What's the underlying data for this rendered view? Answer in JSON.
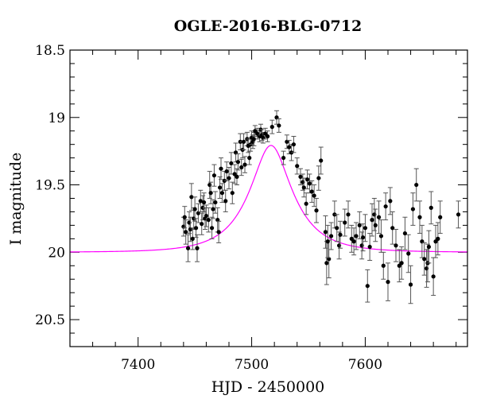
{
  "chart_data": {
    "type": "scatter",
    "title": "OGLE-2016-BLG-0712",
    "xlabel": "HJD - 2450000",
    "ylabel": "I magnitude",
    "xlim": [
      7340,
      7690
    ],
    "ylim": [
      20.7,
      18.5
    ],
    "y_inverted": true,
    "grid": false,
    "x_major_ticks": [
      7400,
      7500,
      7600
    ],
    "x_tick_labels": [
      "7400",
      "7500",
      "7600"
    ],
    "x_minor_step": 20,
    "y_major_ticks": [
      18.5,
      19,
      19.5,
      20,
      20.5
    ],
    "y_tick_labels": [
      "18.5",
      "19",
      "19.5",
      "20",
      "20.5"
    ],
    "y_minor_step": 0.1,
    "model_color": "#ff00ff",
    "point_color": "#000000",
    "model": {
      "type": "paczynski",
      "t0": 7517,
      "tE": 37,
      "u0": 0.42,
      "base_mag": 20.0,
      "blend_fraction": 0.7
    },
    "series": [
      {
        "points": [
          [
            7440,
            19.81,
            0.07
          ],
          [
            7441,
            19.74,
            0.08
          ],
          [
            7442,
            19.85,
            0.09
          ],
          [
            7444,
            19.97,
            0.1
          ],
          [
            7445,
            19.78,
            0.08
          ],
          [
            7446,
            19.83,
            0.09
          ],
          [
            7447,
            19.59,
            0.1
          ],
          [
            7448,
            19.9,
            0.08
          ],
          [
            7449,
            19.75,
            0.08
          ],
          [
            7450,
            19.68,
            0.09
          ],
          [
            7451,
            19.82,
            0.07
          ],
          [
            7452,
            19.97,
            0.1
          ],
          [
            7453,
            19.71,
            0.07
          ],
          [
            7455,
            19.62,
            0.08
          ],
          [
            7456,
            19.79,
            0.08
          ],
          [
            7457,
            19.67,
            0.09
          ],
          [
            7458,
            19.63,
            0.07
          ],
          [
            7459,
            19.75,
            0.08
          ],
          [
            7460,
            19.73,
            0.08
          ],
          [
            7462,
            19.76,
            0.09
          ],
          [
            7463,
            19.5,
            0.1
          ],
          [
            7464,
            19.56,
            0.08
          ],
          [
            7465,
            19.82,
            0.08
          ],
          [
            7466,
            19.68,
            0.07
          ],
          [
            7467,
            19.43,
            0.08
          ],
          [
            7468,
            19.63,
            0.08
          ],
          [
            7470,
            19.76,
            0.09
          ],
          [
            7471,
            19.85,
            0.08
          ],
          [
            7472,
            19.52,
            0.08
          ],
          [
            7473,
            19.38,
            0.08
          ],
          [
            7474,
            19.56,
            0.07
          ],
          [
            7476,
            19.47,
            0.07
          ],
          [
            7477,
            19.62,
            0.08
          ],
          [
            7478,
            19.4,
            0.07
          ],
          [
            7480,
            19.45,
            0.08
          ],
          [
            7482,
            19.34,
            0.08
          ],
          [
            7483,
            19.56,
            0.08
          ],
          [
            7485,
            19.42,
            0.07
          ],
          [
            7486,
            19.26,
            0.07
          ],
          [
            7487,
            19.44,
            0.06
          ],
          [
            7488,
            19.33,
            0.06
          ],
          [
            7490,
            19.18,
            0.06
          ],
          [
            7491,
            19.37,
            0.06
          ],
          [
            7492,
            19.24,
            0.06
          ],
          [
            7493,
            19.18,
            0.06
          ],
          [
            7494,
            19.35,
            0.06
          ],
          [
            7496,
            19.16,
            0.05
          ],
          [
            7497,
            19.21,
            0.05
          ],
          [
            7498,
            19.3,
            0.05
          ],
          [
            7499,
            19.2,
            0.05
          ],
          [
            7500,
            19.15,
            0.05
          ],
          [
            7501,
            19.18,
            0.05
          ],
          [
            7502,
            19.16,
            0.05
          ],
          [
            7503,
            19.1,
            0.04
          ],
          [
            7505,
            19.12,
            0.04
          ],
          [
            7507,
            19.14,
            0.04
          ],
          [
            7508,
            19.09,
            0.04
          ],
          [
            7509,
            19.13,
            0.04
          ],
          [
            7510,
            19.15,
            0.04
          ],
          [
            7512,
            19.12,
            0.04
          ],
          [
            7514,
            19.14,
            0.04
          ],
          [
            7518,
            19.07,
            0.05
          ],
          [
            7522,
            19.0,
            0.05
          ],
          [
            7524,
            19.06,
            0.05
          ],
          [
            7528,
            19.3,
            0.05
          ],
          [
            7531,
            19.18,
            0.05
          ],
          [
            7533,
            19.22,
            0.05
          ],
          [
            7535,
            19.26,
            0.06
          ],
          [
            7537,
            19.2,
            0.06
          ],
          [
            7540,
            19.36,
            0.06
          ],
          [
            7543,
            19.44,
            0.06
          ],
          [
            7545,
            19.48,
            0.06
          ],
          [
            7546,
            19.52,
            0.07
          ],
          [
            7548,
            19.64,
            0.08
          ],
          [
            7549,
            19.46,
            0.07
          ],
          [
            7551,
            19.49,
            0.07
          ],
          [
            7553,
            19.55,
            0.08
          ],
          [
            7555,
            19.58,
            0.08
          ],
          [
            7557,
            19.69,
            0.09
          ],
          [
            7559,
            19.45,
            0.09
          ],
          [
            7561,
            19.32,
            0.1
          ],
          [
            7565,
            19.85,
            0.12
          ],
          [
            7566,
            20.08,
            0.16
          ],
          [
            7568,
            20.05,
            0.14
          ],
          [
            7567,
            19.92,
            0.12
          ],
          [
            7570,
            19.88,
            0.1
          ],
          [
            7573,
            19.72,
            0.1
          ],
          [
            7575,
            19.82,
            0.1
          ],
          [
            7577,
            19.95,
            0.1
          ],
          [
            7578,
            19.87,
            0.1
          ],
          [
            7582,
            19.78,
            0.1
          ],
          [
            7585,
            19.72,
            0.1
          ],
          [
            7588,
            19.9,
            0.1
          ],
          [
            7590,
            19.92,
            0.1
          ],
          [
            7592,
            19.88,
            0.1
          ],
          [
            7595,
            19.8,
            0.1
          ],
          [
            7597,
            19.95,
            0.1
          ],
          [
            7598,
            19.89,
            0.1
          ],
          [
            7600,
            19.82,
            0.1
          ],
          [
            7602,
            20.25,
            0.12
          ],
          [
            7604,
            19.96,
            0.1
          ],
          [
            7606,
            19.76,
            0.12
          ],
          [
            7608,
            19.72,
            0.12
          ],
          [
            7609,
            19.8,
            0.12
          ],
          [
            7612,
            19.74,
            0.12
          ],
          [
            7614,
            19.88,
            0.12
          ],
          [
            7616,
            20.1,
            0.1
          ],
          [
            7618,
            19.66,
            0.1
          ],
          [
            7620,
            20.22,
            0.14
          ],
          [
            7622,
            19.62,
            0.1
          ],
          [
            7624,
            19.82,
            0.12
          ],
          [
            7627,
            19.95,
            0.12
          ],
          [
            7630,
            20.1,
            0.12
          ],
          [
            7632,
            20.08,
            0.12
          ],
          [
            7635,
            19.86,
            0.12
          ],
          [
            7638,
            20.01,
            0.14
          ],
          [
            7640,
            20.24,
            0.14
          ],
          [
            7642,
            19.68,
            0.12
          ],
          [
            7645,
            19.5,
            0.12
          ],
          [
            7648,
            19.74,
            0.12
          ],
          [
            7650,
            19.92,
            0.12
          ],
          [
            7652,
            20.05,
            0.12
          ],
          [
            7654,
            20.12,
            0.14
          ],
          [
            7655,
            20.08,
            0.14
          ],
          [
            7656,
            19.96,
            0.12
          ],
          [
            7658,
            19.67,
            0.12
          ],
          [
            7660,
            20.18,
            0.14
          ],
          [
            7662,
            19.92,
            0.12
          ],
          [
            7664,
            19.9,
            0.12
          ],
          [
            7666,
            19.74,
            0.12
          ],
          [
            7682,
            19.72,
            0.1
          ]
        ]
      }
    ]
  }
}
